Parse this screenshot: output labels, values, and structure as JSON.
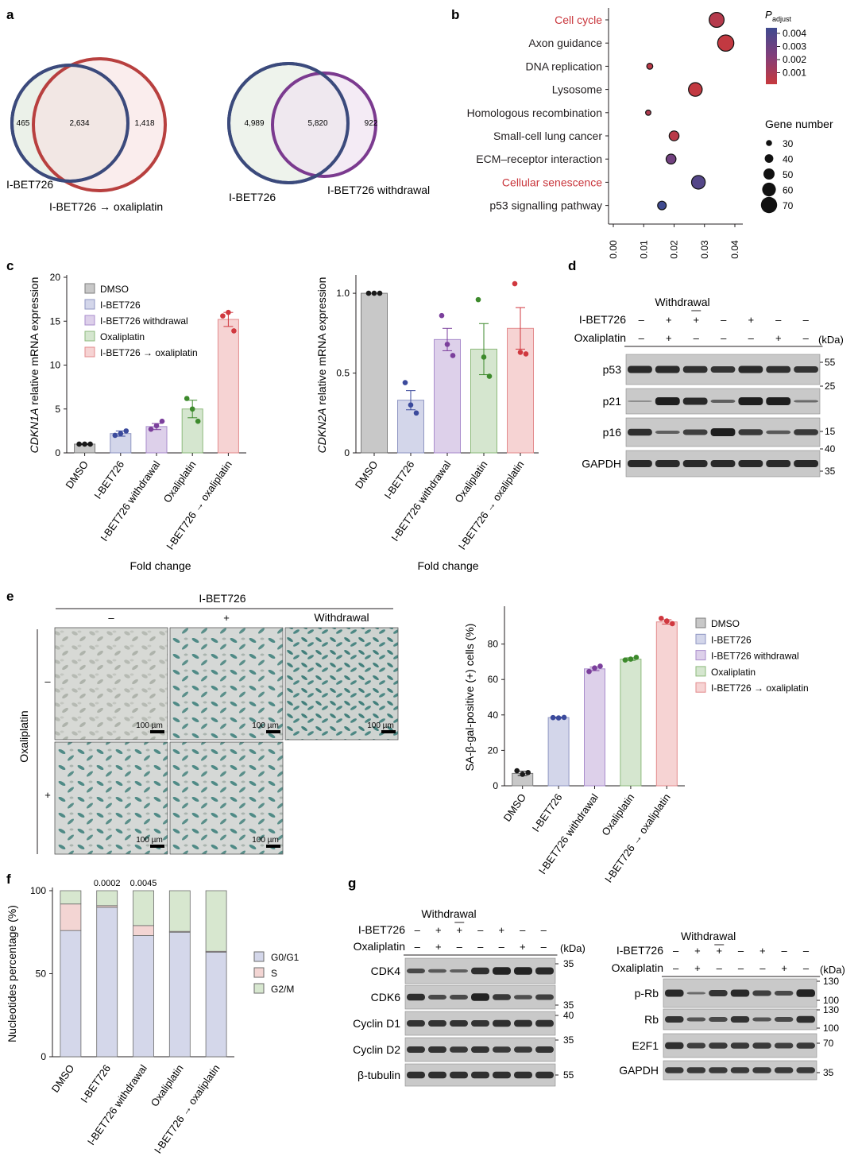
{
  "panel_labels": {
    "a": "a",
    "b": "b",
    "c": "c",
    "d": "d",
    "e": "e",
    "f": "f",
    "g": "g"
  },
  "colors": {
    "dmso": "#c8c8c8",
    "ibet": "#d3d6ea",
    "withdrawal": "#ddd0ea",
    "oxali": "#d5e6cf",
    "combo": "#f6d3d3",
    "dot_dmso": "#1a1a1a",
    "dot_ibet": "#3b4a9c",
    "dot_withdrawal": "#7b3f9c",
    "dot_oxali": "#3d8a2c",
    "dot_combo": "#d0383f",
    "venn_blue": "#3b4a7c",
    "venn_red": "#b8403f",
    "venn_purple": "#7b3a8f",
    "red_text": "#c9363c",
    "pad_high": "#3f4a8f",
    "pad_low": "#c6393d",
    "f_g0": "#d4d7ea",
    "f_s": "#f3d5d3",
    "f_g2": "#d7e7cf"
  },
  "venn1": {
    "left": "465",
    "center": "2,634",
    "right": "1,418",
    "label_left": "I-BET726",
    "label_right": "I-BET726 → oxaliplatin"
  },
  "venn2": {
    "left": "4,989",
    "center": "5,820",
    "right": "922",
    "label_left": "I-BET726",
    "label_right": "I-BET726 withdrawal"
  },
  "chart_data": [
    {
      "id": "b",
      "type": "scatter",
      "categories": [
        "Cell cycle",
        "Axon guidance",
        "DNA replication",
        "Lysosome",
        "Homologous recombination",
        "Small-cell lung cancer",
        "ECM–receptor interaction",
        "Cellular senescence",
        "p53 signalling pathway"
      ],
      "highlight": [
        "Cell cycle",
        "Cellular senescence"
      ],
      "x": [
        0.034,
        0.037,
        0.012,
        0.027,
        0.0115,
        0.02,
        0.019,
        0.028,
        0.016
      ],
      "gene_number": [
        65,
        70,
        30,
        60,
        27,
        45,
        45,
        60,
        40
      ],
      "padjust": [
        0.0012,
        0.0009,
        0.0011,
        0.0009,
        0.0013,
        0.0011,
        0.0028,
        0.0035,
        0.004
      ],
      "xticks": [
        "0.00",
        "0.01",
        "0.02",
        "0.03",
        "0.04"
      ],
      "xlim": [
        0,
        0.04
      ],
      "legend_color_title": "P",
      "legend_color_sub": "adjust",
      "legend_color_ticks": [
        "0.004",
        "0.003",
        "0.002",
        "0.001"
      ],
      "legend_size_title": "Gene number",
      "legend_size_values": [
        "30",
        "40",
        "50",
        "60",
        "70"
      ]
    },
    {
      "id": "c1",
      "type": "bar",
      "ylabel_italic": "CDKN1A",
      "ylabel_rest": " relative mRNA expression",
      "xlabel": "Fold change",
      "categories": [
        "DMSO",
        "I-BET726",
        "I-BET726 withdrawal",
        "Oxaliplatin",
        "I-BET726 → oxaliplatin"
      ],
      "values": [
        1.0,
        2.2,
        3.0,
        5.0,
        15.2
      ],
      "errors": [
        0.05,
        0.3,
        0.35,
        1.0,
        0.8
      ],
      "points": [
        [
          1,
          1,
          1
        ],
        [
          2.0,
          2.2,
          2.5
        ],
        [
          2.7,
          3.1,
          3.6
        ],
        [
          6.2,
          5.0,
          3.6
        ],
        [
          15.6,
          16.0,
          13.9
        ]
      ],
      "ylim": [
        0,
        20
      ],
      "yticks": [
        "0",
        "5",
        "10",
        "15",
        "20"
      ],
      "legend": [
        "DMSO",
        "I-BET726",
        "I-BET726 withdrawal",
        "Oxaliplatin",
        "I-BET726 → oxaliplatin"
      ]
    },
    {
      "id": "c2",
      "type": "bar",
      "ylabel_italic": "CDKN2A",
      "ylabel_rest": " relative mRNA expression",
      "xlabel": "Fold change",
      "categories": [
        "DMSO",
        "I-BET726",
        "I-BET726 withdrawal",
        "Oxaliplatin",
        "I-BET726 → oxaliplatin"
      ],
      "values": [
        1.0,
        0.33,
        0.71,
        0.65,
        0.78
      ],
      "errors": [
        0.0,
        0.06,
        0.07,
        0.16,
        0.13
      ],
      "points": [
        [
          1,
          1,
          1
        ],
        [
          0.44,
          0.3,
          0.25
        ],
        [
          0.86,
          0.68,
          0.61
        ],
        [
          0.96,
          0.6,
          0.48
        ],
        [
          1.06,
          0.63,
          0.62
        ]
      ],
      "ylim": [
        0,
        1.1
      ],
      "yticks": [
        "0",
        "0.5",
        "1.0"
      ]
    },
    {
      "id": "e",
      "type": "bar",
      "ylabel": "SA-β-gal-positive (+) cells (%)",
      "categories": [
        "DMSO",
        "I-BET726",
        "I-BET726 withdrawal",
        "Oxaliplatin",
        "I-BET726 → oxaliplatin"
      ],
      "values": [
        7,
        38.5,
        66,
        71.5,
        92.5
      ],
      "errors": [
        1.2,
        0.3,
        1.0,
        0.7,
        1.2
      ],
      "points": [
        [
          8.5,
          6.5,
          7.5
        ],
        [
          38.5,
          38.3,
          38.6
        ],
        [
          64.5,
          66.5,
          67.5
        ],
        [
          71,
          71.5,
          72.5
        ],
        [
          94.5,
          93,
          91.5
        ]
      ],
      "ylim": [
        0,
        100
      ],
      "yticks": [
        "0",
        "20",
        "40",
        "60",
        "80"
      ],
      "legend": [
        "DMSO",
        "I-BET726",
        "I-BET726 withdrawal",
        "Oxaliplatin",
        "I-BET726 → oxaliplatin"
      ]
    },
    {
      "id": "f",
      "type": "bar",
      "stacked": true,
      "ylabel": "Nucleotides percentage (%)",
      "categories": [
        "DMSO",
        "I-BET726",
        "I-BET726 withdrawal",
        "Oxaliplatin",
        "I-BET726 → oxaliplatin"
      ],
      "series": [
        {
          "name": "G0/G1",
          "values": [
            76,
            90,
            73,
            75,
            63
          ]
        },
        {
          "name": "S",
          "values": [
            16,
            1,
            6,
            0.5,
            0.5
          ]
        },
        {
          "name": "G2/M",
          "values": [
            8,
            9,
            21,
            24.5,
            36.5
          ]
        }
      ],
      "top_labels": [
        "",
        "0.0002",
        "0.0045",
        "",
        ""
      ],
      "ylim": [
        0,
        100
      ],
      "yticks": [
        "0",
        "50",
        "100"
      ]
    }
  ],
  "panel_e": {
    "header": "I-BET726",
    "cols": [
      "–",
      "+",
      "Withdrawal"
    ],
    "row_title": "Oxaliplatin",
    "rows": [
      "–",
      "+"
    ],
    "scale": "100 µm"
  },
  "blot_d": {
    "withdrawal": "Withdrawal",
    "row1_label": "I-BET726",
    "row1": [
      "–",
      "+",
      "+",
      "–",
      "+",
      "–",
      "–"
    ],
    "row2_label": "Oxaliplatin",
    "row2": [
      "–",
      "+",
      "–",
      "–",
      "–",
      "+",
      "–"
    ],
    "kda": "(kDa)",
    "bands": [
      "p53",
      "p21",
      "p16",
      "GAPDH"
    ],
    "markers": [
      "55",
      "25",
      "15",
      "40",
      "35"
    ]
  },
  "blot_g1": {
    "withdrawal": "Withdrawal",
    "row1_label": "I-BET726",
    "row1": [
      "–",
      "+",
      "+",
      "–",
      "+",
      "–",
      "–"
    ],
    "row2_label": "Oxaliplatin",
    "row2": [
      "–",
      "+",
      "–",
      "–",
      "–",
      "+",
      "–"
    ],
    "kda": "(kDa)",
    "bands": [
      "CDK4",
      "CDK6",
      "Cyclin D1",
      "Cyclin D2",
      "β-tubulin"
    ],
    "markers": [
      "35",
      "35",
      "40",
      "35",
      "55"
    ]
  },
  "blot_g2": {
    "withdrawal": "Withdrawal",
    "row1_label": "I-BET726",
    "row1": [
      "–",
      "+",
      "+",
      "–",
      "+",
      "–",
      "–"
    ],
    "row2_label": "Oxaliplatin",
    "row2": [
      "–",
      "+",
      "–",
      "–",
      "–",
      "+",
      "–"
    ],
    "kda": "(kDa)",
    "bands": [
      "p-Rb",
      "Rb",
      "E2F1",
      "GAPDH"
    ],
    "markers": [
      "130",
      "100",
      "130",
      "100",
      "70",
      "35"
    ]
  }
}
